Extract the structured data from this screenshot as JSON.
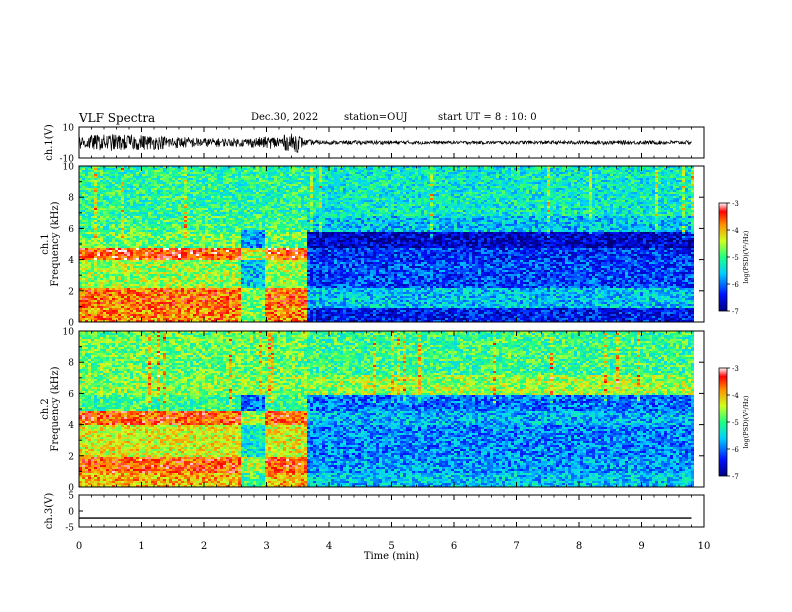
{
  "header": {
    "title": "VLF Spectra",
    "date": "Dec.30, 2022",
    "station": "station=OUJ",
    "start_ut": "start  UT =   8 : 10: 0"
  },
  "chart_data": [
    {
      "type": "line",
      "panel": "ch1-waveform",
      "ylabel": "ch.1(V)",
      "ylim": [
        -10,
        10
      ],
      "yticks": [
        "10",
        "-10"
      ],
      "xlim": [
        0,
        10
      ],
      "series": [
        {
          "x": [
            0,
            0.5,
            1,
            1.5,
            2,
            2.5,
            2.9,
            3.2,
            3.5,
            3.6,
            4,
            5,
            6,
            7,
            8,
            9,
            9.8
          ],
          "amplitude": [
            4.5,
            5.5,
            5.0,
            4.0,
            3.0,
            2.5,
            3.5,
            4.5,
            6.5,
            2.0,
            1.2,
            1.3,
            1.0,
            1.1,
            1.2,
            1.3,
            1.2
          ]
        }
      ],
      "color": "#000000"
    },
    {
      "type": "heatmap",
      "panel": "ch1-spectrogram",
      "ylabel": "ch.1\nFrequency (kHz)",
      "ylim": [
        0,
        10
      ],
      "yticks": [
        "0",
        "2",
        "4",
        "6",
        "8",
        "10"
      ],
      "xlim": [
        0,
        10
      ],
      "colorbar": {
        "label": "log(PSD)(V²/Hz)",
        "range": [
          -7,
          -3
        ],
        "ticks": [
          "-3",
          "-4",
          "-5",
          "-6",
          "-7"
        ]
      },
      "bands": [
        {
          "fmin": 0.0,
          "fmax": 1.0,
          "pre": -3.8,
          "post": -6.4
        },
        {
          "fmin": 1.0,
          "fmax": 2.2,
          "pre": -3.7,
          "post": -5.6
        },
        {
          "fmin": 2.2,
          "fmax": 4.0,
          "pre": -4.6,
          "post": -6.2
        },
        {
          "fmin": 4.0,
          "fmax": 4.8,
          "pre": -3.5,
          "post": -6.3
        },
        {
          "fmin": 4.8,
          "fmax": 5.8,
          "pre": -4.8,
          "post": -6.7
        },
        {
          "fmin": 5.8,
          "fmax": 6.8,
          "pre": -5.0,
          "post": -5.6
        },
        {
          "fmin": 6.8,
          "fmax": 10.0,
          "pre": -5.1,
          "post": -5.3
        }
      ],
      "transition_min": 3.6,
      "dip_min": [
        2.55,
        2.95
      ]
    },
    {
      "type": "heatmap",
      "panel": "ch2-spectrogram",
      "ylabel": "ch.2\nFrequency (kHz)",
      "ylim": [
        0,
        10
      ],
      "yticks": [
        "0",
        "2",
        "4",
        "6",
        "8",
        "10"
      ],
      "xlim": [
        0,
        10
      ],
      "colorbar": {
        "label": "log(PSD)(V²/Hz)",
        "range": [
          -7,
          -3
        ],
        "ticks": [
          "-3",
          "-4",
          "-5",
          "-6",
          "-7"
        ]
      },
      "bands": [
        {
          "fmin": 0.0,
          "fmax": 1.0,
          "pre": -4.0,
          "post": -5.6
        },
        {
          "fmin": 1.0,
          "fmax": 2.0,
          "pre": -3.6,
          "post": -5.8
        },
        {
          "fmin": 2.0,
          "fmax": 4.0,
          "pre": -4.3,
          "post": -5.9
        },
        {
          "fmin": 4.0,
          "fmax": 5.0,
          "pre": -3.6,
          "post": -5.7
        },
        {
          "fmin": 5.0,
          "fmax": 6.0,
          "pre": -5.0,
          "post": -6.0
        },
        {
          "fmin": 6.0,
          "fmax": 7.2,
          "pre": -4.7,
          "post": -4.6
        },
        {
          "fmin": 7.2,
          "fmax": 10.0,
          "pre": -4.8,
          "post": -5.0
        }
      ],
      "transition_min": 3.6,
      "dip_min": [
        2.55,
        2.95
      ]
    },
    {
      "type": "line",
      "panel": "ch3-waveform",
      "ylabel": "ch.3(V)",
      "ylim": [
        -5,
        5
      ],
      "yticks": [
        "5",
        "0",
        "-5"
      ],
      "xlim": [
        0,
        10
      ],
      "series": [
        {
          "x": [
            0,
            9.8
          ],
          "y": [
            -2.2,
            -2.2
          ]
        }
      ],
      "color": "#000000"
    }
  ],
  "x_axis": {
    "label": "Time (min)",
    "ticks": [
      "0",
      "1",
      "2",
      "3",
      "4",
      "5",
      "6",
      "7",
      "8",
      "9",
      "10"
    ]
  }
}
